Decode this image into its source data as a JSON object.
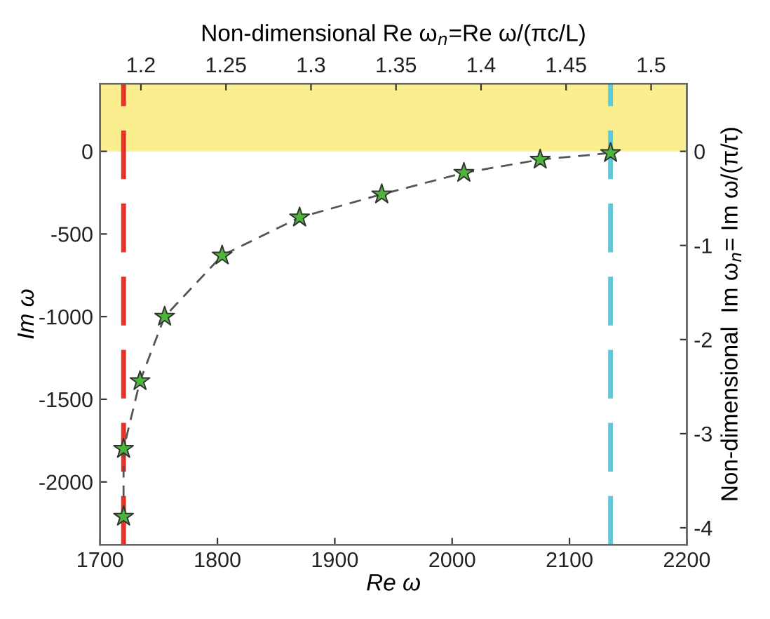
{
  "chart_data": {
    "type": "scatter",
    "xlabel": "Re ω",
    "ylabel": "Im ω",
    "x2label": "Non-dimensional Re ω$_{n}$=Re ω/(πc/L)",
    "y2label": "Non-dimensional  Im ω$_{n}$= Im ω/(π/τ)",
    "x": [
      1720,
      1720,
      1734,
      1755,
      1804,
      1870,
      1940,
      2010,
      2075,
      2135
    ],
    "series": [
      {
        "type": "line",
        "color": "#555555",
        "line_style": "dashed",
        "marker": "none",
        "values": [
          -2210,
          -1800,
          -1390,
          -1000,
          -630,
          -400,
          -260,
          -130,
          -50,
          -10
        ]
      },
      {
        "color": "#4db43c",
        "marker": "star",
        "values": [
          -2210,
          -1800,
          -1390,
          -1000,
          -630,
          -400,
          -260,
          -130,
          -50,
          -10
        ]
      }
    ],
    "xlim": [
      1700,
      2200
    ],
    "xticks": [
      1700,
      1800,
      1900,
      2000,
      2100,
      2200
    ],
    "ylim": [
      -2380,
      410
    ],
    "yticks": [
      0,
      -500,
      -1000,
      -1500,
      -2000
    ],
    "x2lim": [
      1.176,
      1.521
    ],
    "x2ticks": [
      1.2,
      1.25,
      1.3,
      1.35,
      1.4,
      1.45,
      1.5
    ],
    "y2lim": [
      -4.18,
      0.72
    ],
    "y2ticks": [
      0,
      -1,
      -2,
      -3,
      -4
    ],
    "ref_lines": [
      {
        "axis": "x",
        "value": 1720,
        "color": "#e8332a",
        "line_style": "dashed"
      },
      {
        "axis": "x",
        "value": 2135,
        "color": "#5bc8dc",
        "line_style": "dashed"
      }
    ],
    "bands": [
      {
        "axis": "y",
        "from": 0,
        "to": 410,
        "color": "#fbee8e"
      }
    ],
    "grid": false
  }
}
